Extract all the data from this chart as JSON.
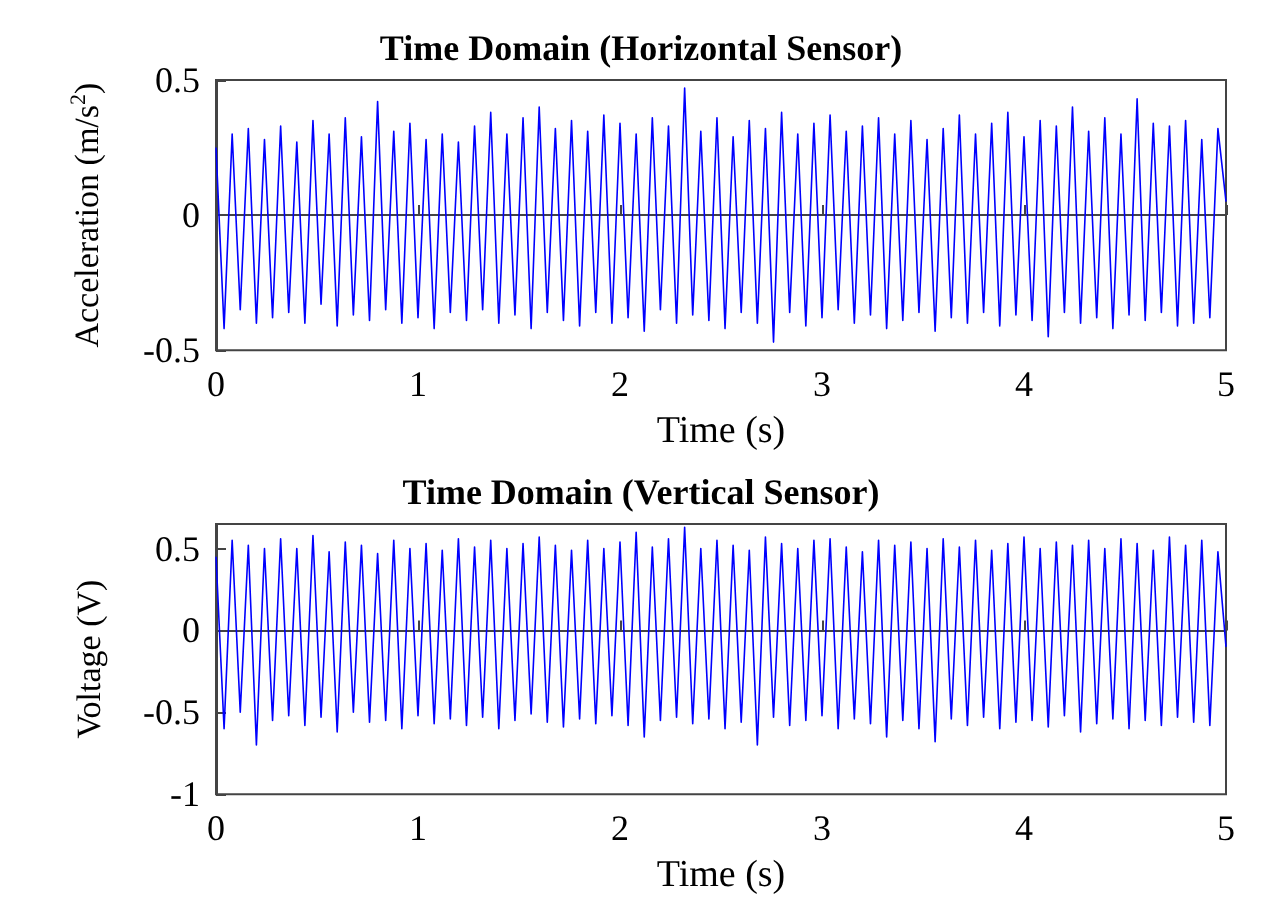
{
  "chart_data": [
    {
      "type": "line",
      "title": "Time Domain (Horizontal Sensor)",
      "xlabel": "Time (s)",
      "ylabel": "Acceleration (m/s$^{2}$)",
      "xlim": [
        0,
        5
      ],
      "xticks": [
        0,
        1,
        2,
        3,
        4,
        5
      ],
      "ylim": [
        -0.5,
        0.5
      ],
      "yticks": [
        -0.5,
        0,
        0.5
      ],
      "x": [
        0,
        0.04,
        0.08,
        0.12,
        0.16,
        0.2,
        0.24,
        0.28,
        0.32,
        0.36,
        0.4,
        0.44,
        0.48,
        0.52,
        0.56,
        0.6,
        0.64,
        0.68,
        0.72,
        0.76,
        0.8,
        0.84,
        0.88,
        0.92,
        0.96,
        1,
        1.04,
        1.08,
        1.12,
        1.16,
        1.2,
        1.24,
        1.28,
        1.32,
        1.36,
        1.4,
        1.44,
        1.48,
        1.52,
        1.56,
        1.6,
        1.64,
        1.68,
        1.72,
        1.76,
        1.8,
        1.84,
        1.88,
        1.92,
        1.96,
        2,
        2.04,
        2.08,
        2.12,
        2.16,
        2.2,
        2.24,
        2.28,
        2.32,
        2.36,
        2.4,
        2.44,
        2.48,
        2.52,
        2.56,
        2.6,
        2.64,
        2.68,
        2.72,
        2.76,
        2.8,
        2.84,
        2.88,
        2.92,
        2.96,
        3,
        3.04,
        3.08,
        3.12,
        3.16,
        3.2,
        3.24,
        3.28,
        3.32,
        3.36,
        3.4,
        3.44,
        3.48,
        3.52,
        3.56,
        3.6,
        3.64,
        3.68,
        3.72,
        3.76,
        3.8,
        3.84,
        3.88,
        3.92,
        3.96,
        4,
        4.04,
        4.08,
        4.12,
        4.16,
        4.2,
        4.24,
        4.28,
        4.32,
        4.36,
        4.4,
        4.44,
        4.48,
        4.52,
        4.56,
        4.6,
        4.64,
        4.68,
        4.72,
        4.76,
        4.8,
        4.84,
        4.88,
        4.92,
        4.96,
        5
      ],
      "series": [
        {
          "color": "#0000ff",
          "values": [
            0.25,
            -0.42,
            0.3,
            -0.35,
            0.32,
            -0.4,
            0.28,
            -0.38,
            0.33,
            -0.36,
            0.27,
            -0.4,
            0.35,
            -0.33,
            0.3,
            -0.41,
            0.36,
            -0.37,
            0.29,
            -0.39,
            0.42,
            -0.35,
            0.31,
            -0.4,
            0.34,
            -0.38,
            0.28,
            -0.42,
            0.3,
            -0.36,
            0.27,
            -0.39,
            0.33,
            -0.35,
            0.38,
            -0.4,
            0.3,
            -0.37,
            0.36,
            -0.42,
            0.4,
            -0.36,
            0.32,
            -0.39,
            0.35,
            -0.41,
            0.31,
            -0.36,
            0.37,
            -0.4,
            0.34,
            -0.38,
            0.3,
            -0.43,
            0.36,
            -0.35,
            0.33,
            -0.4,
            0.47,
            -0.37,
            0.31,
            -0.39,
            0.36,
            -0.42,
            0.29,
            -0.36,
            0.35,
            -0.4,
            0.32,
            -0.47,
            0.38,
            -0.36,
            0.3,
            -0.41,
            0.34,
            -0.38,
            0.37,
            -0.35,
            0.31,
            -0.4,
            0.33,
            -0.37,
            0.36,
            -0.42,
            0.3,
            -0.39,
            0.35,
            -0.36,
            0.28,
            -0.43,
            0.32,
            -0.38,
            0.37,
            -0.4,
            0.3,
            -0.36,
            0.34,
            -0.41,
            0.38,
            -0.37,
            0.29,
            -0.39,
            0.35,
            -0.45,
            0.33,
            -0.36,
            0.4,
            -0.4,
            0.31,
            -0.38,
            0.36,
            -0.42,
            0.3,
            -0.37,
            0.43,
            -0.39,
            0.34,
            -0.36,
            0.33,
            -0.41,
            0.35,
            -0.4,
            0.28,
            -0.38,
            0.32,
            0.05
          ]
        }
      ]
    },
    {
      "type": "line",
      "title": "Time Domain (Vertical Sensor)",
      "xlabel": "Time (s)",
      "ylabel": "Voltage (V)",
      "xlim": [
        0,
        5
      ],
      "xticks": [
        0,
        1,
        2,
        3,
        4,
        5
      ],
      "ylim": [
        -1,
        0.65
      ],
      "yticks": [
        -1,
        -0.5,
        0,
        0.5
      ],
      "x": [
        0,
        0.04,
        0.08,
        0.12,
        0.16,
        0.2,
        0.24,
        0.28,
        0.32,
        0.36,
        0.4,
        0.44,
        0.48,
        0.52,
        0.56,
        0.6,
        0.64,
        0.68,
        0.72,
        0.76,
        0.8,
        0.84,
        0.88,
        0.92,
        0.96,
        1,
        1.04,
        1.08,
        1.12,
        1.16,
        1.2,
        1.24,
        1.28,
        1.32,
        1.36,
        1.4,
        1.44,
        1.48,
        1.52,
        1.56,
        1.6,
        1.64,
        1.68,
        1.72,
        1.76,
        1.8,
        1.84,
        1.88,
        1.92,
        1.96,
        2,
        2.04,
        2.08,
        2.12,
        2.16,
        2.2,
        2.24,
        2.28,
        2.32,
        2.36,
        2.4,
        2.44,
        2.48,
        2.52,
        2.56,
        2.6,
        2.64,
        2.68,
        2.72,
        2.76,
        2.8,
        2.84,
        2.88,
        2.92,
        2.96,
        3,
        3.04,
        3.08,
        3.12,
        3.16,
        3.2,
        3.24,
        3.28,
        3.32,
        3.36,
        3.4,
        3.44,
        3.48,
        3.52,
        3.56,
        3.6,
        3.64,
        3.68,
        3.72,
        3.76,
        3.8,
        3.84,
        3.88,
        3.92,
        3.96,
        4,
        4.04,
        4.08,
        4.12,
        4.16,
        4.2,
        4.24,
        4.28,
        4.32,
        4.36,
        4.4,
        4.44,
        4.48,
        4.52,
        4.56,
        4.6,
        4.64,
        4.68,
        4.72,
        4.76,
        4.8,
        4.84,
        4.88,
        4.92,
        4.96,
        5
      ],
      "series": [
        {
          "color": "#0000ff",
          "values": [
            0.45,
            -0.6,
            0.55,
            -0.5,
            0.52,
            -0.7,
            0.5,
            -0.55,
            0.56,
            -0.52,
            0.5,
            -0.58,
            0.58,
            -0.53,
            0.48,
            -0.62,
            0.54,
            -0.5,
            0.52,
            -0.56,
            0.47,
            -0.55,
            0.55,
            -0.6,
            0.5,
            -0.52,
            0.53,
            -0.57,
            0.49,
            -0.54,
            0.56,
            -0.58,
            0.51,
            -0.53,
            0.55,
            -0.6,
            0.5,
            -0.55,
            0.53,
            -0.51,
            0.57,
            -0.56,
            0.52,
            -0.59,
            0.49,
            -0.54,
            0.55,
            -0.57,
            0.5,
            -0.52,
            0.54,
            -0.58,
            0.6,
            -0.65,
            0.51,
            -0.55,
            0.56,
            -0.53,
            0.63,
            -0.57,
            0.5,
            -0.54,
            0.55,
            -0.6,
            0.52,
            -0.56,
            0.49,
            -0.7,
            0.57,
            -0.53,
            0.53,
            -0.58,
            0.5,
            -0.55,
            0.55,
            -0.52,
            0.56,
            -0.6,
            0.51,
            -0.54,
            0.48,
            -0.57,
            0.55,
            -0.65,
            0.52,
            -0.55,
            0.54,
            -0.6,
            0.5,
            -0.68,
            0.56,
            -0.54,
            0.51,
            -0.58,
            0.55,
            -0.53,
            0.49,
            -0.6,
            0.53,
            -0.56,
            0.57,
            -0.55,
            0.5,
            -0.59,
            0.54,
            -0.52,
            0.52,
            -0.62,
            0.55,
            -0.57,
            0.5,
            -0.54,
            0.56,
            -0.6,
            0.53,
            -0.55,
            0.49,
            -0.58,
            0.57,
            -0.53,
            0.52,
            -0.56,
            0.55,
            -0.58,
            0.48,
            -0.1
          ]
        }
      ]
    }
  ]
}
